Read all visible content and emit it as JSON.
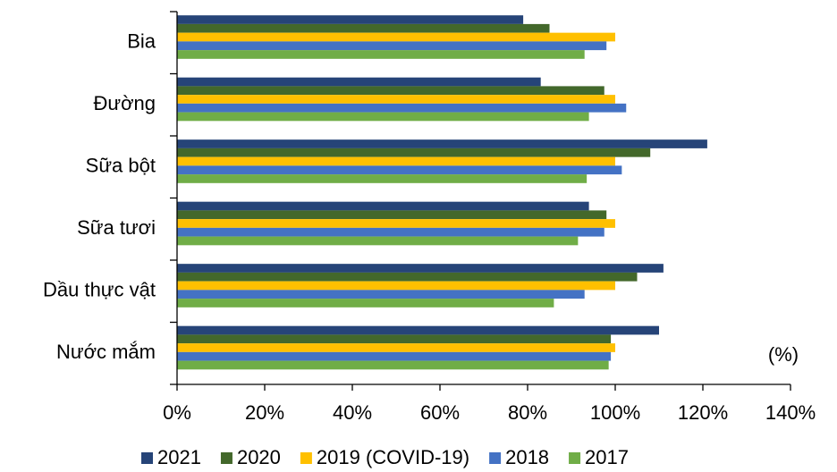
{
  "chart_data": {
    "type": "bar",
    "orientation": "horizontal",
    "categories": [
      "Bia",
      "Đường",
      "Sữa bột",
      "Sữa tươi",
      "Dầu thực vật",
      "Nước mắm"
    ],
    "series": [
      {
        "name": "2021",
        "color": "#264478",
        "values": [
          79,
          83,
          121,
          94,
          111,
          110
        ]
      },
      {
        "name": "2020",
        "color": "#43682b",
        "values": [
          85,
          97.5,
          108,
          98,
          105,
          99
        ]
      },
      {
        "name": "2019 (COVID-19)",
        "color": "#ffc000",
        "values": [
          100,
          100,
          100,
          100,
          100,
          100
        ]
      },
      {
        "name": "2018",
        "color": "#4472c4",
        "values": [
          98,
          102.5,
          101.5,
          97.5,
          93,
          99
        ]
      },
      {
        "name": "2017",
        "color": "#70ad47",
        "values": [
          93,
          94,
          93.5,
          91.5,
          86,
          98.5
        ]
      }
    ],
    "xlim": [
      0,
      140
    ],
    "xticks": [
      {
        "value": 0,
        "label": "0%"
      },
      {
        "value": 20,
        "label": "20%"
      },
      {
        "value": 40,
        "label": "40%"
      },
      {
        "value": 60,
        "label": "60%"
      },
      {
        "value": 80,
        "label": "80%"
      },
      {
        "value": 100,
        "label": "100%"
      },
      {
        "value": 120,
        "label": "120%"
      },
      {
        "value": 140,
        "label": "140%"
      }
    ],
    "annotation": "(%)",
    "legend": "bottom"
  }
}
